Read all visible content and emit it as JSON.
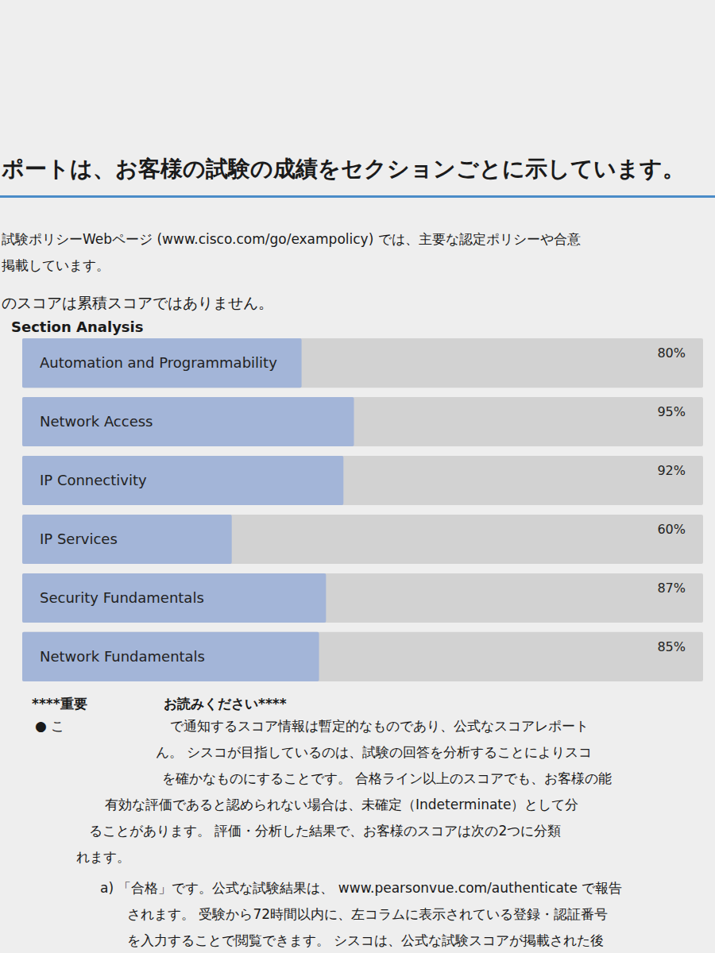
{
  "chart_data": {
    "type": "bar",
    "orientation": "horizontal",
    "title": "Section Analysis",
    "categories": [
      "Automation and Programmability",
      "Network Access",
      "IP Connectivity",
      "IP Services",
      "Security Fundamentals",
      "Network Fundamentals"
    ],
    "values": [
      80,
      95,
      92,
      60,
      87,
      85
    ],
    "value_labels": [
      "80%",
      "95%",
      "92%",
      "60%",
      "87%",
      "85%"
    ],
    "data_labels": true,
    "tick_labels": "y",
    "grid": false,
    "color": "#a3b5d8",
    "xlim": [
      0,
      195
    ]
  },
  "document": {
    "heading": "ポートは、お客様の試験の成績をセクションごとに示しています。",
    "intro": [
      "試験ポリシーWebページ (www.cisco.com/go/exampolicy) では、主要な認定ポリシーや合意",
      "掲載しています。",
      "のスコアは累積スコアではありません。"
    ],
    "notice": [
      [
        "****重要",
        "お読みください****"
      ],
      [
        "● こ",
        "で通知するスコア情報は暫定的なものであり、公式なスコアレポート"
      ],
      [
        "ん。 シスコが目指しているのは、試験の回答を分析することによりスコ"
      ],
      [
        "を確かなものにすることです。 合格ライン以上のスコアでも、お客様の能"
      ],
      [
        "有効な評価であると認められない場合は、未確定（Indeterminate）として分"
      ],
      [
        "ることがあります。 評価・分析した結果で、お客様のスコアは次の2つに分類"
      ],
      [
        "れます。"
      ],
      [
        "a) 「合格」です。公式な試験結果は、 www.pearsonvue.com/authenticate で報告"
      ],
      [
        "されます。 受験から72時間以内に、左コラムに表示されている登録・認証番号"
      ],
      [
        "を入力することで閲覧できます。 シスコは、公式な試験スコアが掲載された後"
      ]
    ]
  }
}
